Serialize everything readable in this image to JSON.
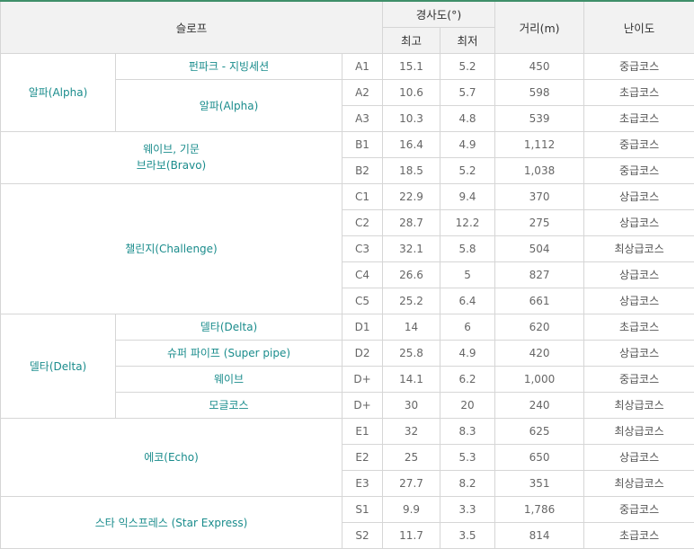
{
  "header": {
    "slope": "슬로프",
    "slope_degree": "경사도(°)",
    "max": "최고",
    "min": "최저",
    "distance": "거리(m)",
    "difficulty": "난이도"
  },
  "rows": {
    "r0": {
      "area": "알파(Alpha)",
      "name": "펀파크 - 지빙세션",
      "code": "A1",
      "max": "15.1",
      "min": "5.2",
      "dist": "450",
      "level": "중급코스"
    },
    "r1": {
      "name": "알파(Alpha)",
      "code": "A2",
      "max": "10.6",
      "min": "5.7",
      "dist": "598",
      "level": "초급코스"
    },
    "r2": {
      "code": "A3",
      "max": "10.3",
      "min": "4.8",
      "dist": "539",
      "level": "초급코스"
    },
    "r3": {
      "area_line1": "웨이브, 기문",
      "area_line2": "브라보(Bravo)",
      "code": "B1",
      "max": "16.4",
      "min": "4.9",
      "dist": "1,112",
      "level": "중급코스"
    },
    "r4": {
      "code": "B2",
      "max": "18.5",
      "min": "5.2",
      "dist": "1,038",
      "level": "중급코스"
    },
    "r5": {
      "area": "챌린지(Challenge)",
      "code": "C1",
      "max": "22.9",
      "min": "9.4",
      "dist": "370",
      "level": "상급코스"
    },
    "r6": {
      "code": "C2",
      "max": "28.7",
      "min": "12.2",
      "dist": "275",
      "level": "상급코스"
    },
    "r7": {
      "code": "C3",
      "max": "32.1",
      "min": "5.8",
      "dist": "504",
      "level": "최상급코스"
    },
    "r8": {
      "code": "C4",
      "max": "26.6",
      "min": "5",
      "dist": "827",
      "level": "상급코스"
    },
    "r9": {
      "code": "C5",
      "max": "25.2",
      "min": "6.4",
      "dist": "661",
      "level": "상급코스"
    },
    "r10": {
      "area": "델타(Delta)",
      "name": "델타(Delta)",
      "code": "D1",
      "max": "14",
      "min": "6",
      "dist": "620",
      "level": "초급코스"
    },
    "r11": {
      "name": "슈퍼 파이프 (Super pipe)",
      "code": "D2",
      "max": "25.8",
      "min": "4.9",
      "dist": "420",
      "level": "상급코스"
    },
    "r12": {
      "name": "웨이브",
      "code": "D+",
      "max": "14.1",
      "min": "6.2",
      "dist": "1,000",
      "level": "중급코스"
    },
    "r13": {
      "name": "모글코스",
      "code": "D+",
      "max": "30",
      "min": "20",
      "dist": "240",
      "level": "최상급코스"
    },
    "r14": {
      "area": "에코(Echo)",
      "code": "E1",
      "max": "32",
      "min": "8.3",
      "dist": "625",
      "level": "최상급코스"
    },
    "r15": {
      "code": "E2",
      "max": "25",
      "min": "5.3",
      "dist": "650",
      "level": "상급코스"
    },
    "r16": {
      "code": "E3",
      "max": "27.7",
      "min": "8.2",
      "dist": "351",
      "level": "최상급코스"
    },
    "r17": {
      "area": "스타 익스프레스 (Star Express)",
      "code": "S1",
      "max": "9.9",
      "min": "3.3",
      "dist": "1,786",
      "level": "중급코스"
    },
    "r18": {
      "code": "S2",
      "max": "11.7",
      "min": "3.5",
      "dist": "814",
      "level": "초급코스"
    }
  },
  "colors": {
    "header_bg": "#f2f2f2",
    "accent_line": "#3f8f6a",
    "slope_text": "#1a8c8c",
    "border": "#d6d6d6"
  }
}
